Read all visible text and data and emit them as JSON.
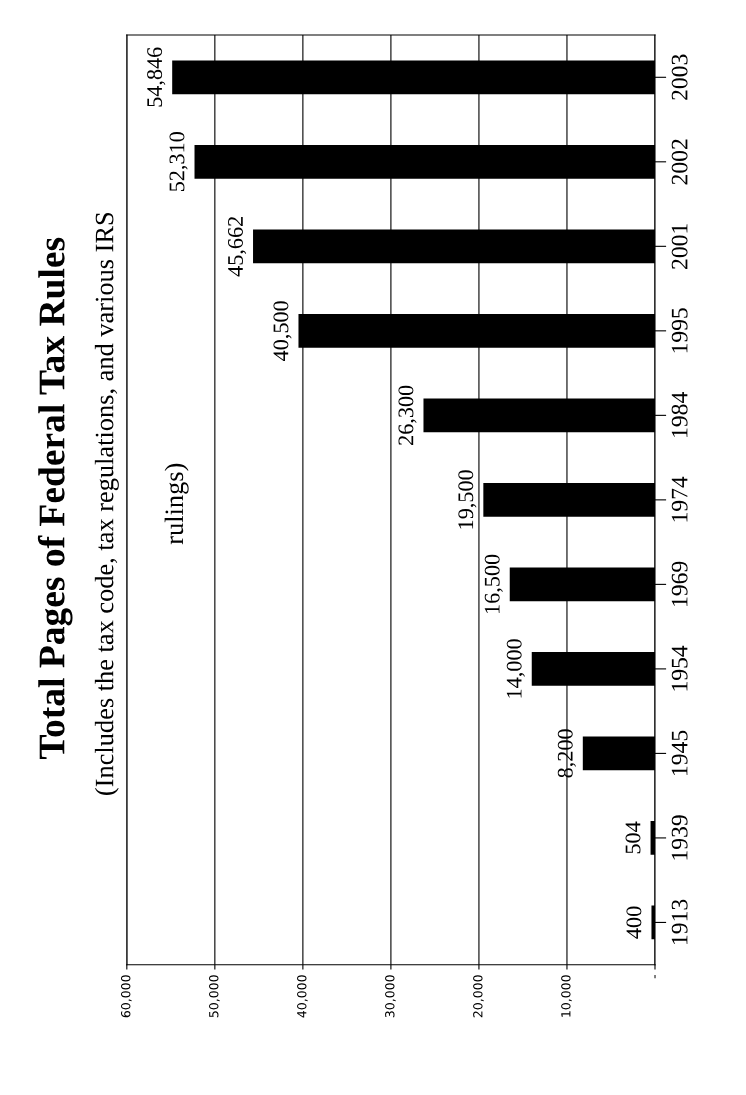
{
  "chart_data": {
    "type": "bar",
    "orientation": "horizontal",
    "title": "Total Pages of Federal Tax Rules",
    "subtitle": "(Includes the tax code, tax regulations, and various IRS\nrulings)",
    "categories": [
      "2003",
      "2002",
      "2001",
      "1995",
      "1984",
      "1974",
      "1969",
      "1954",
      "1945",
      "1939",
      "1913"
    ],
    "values": [
      54846,
      52310,
      45662,
      40500,
      26300,
      19500,
      16500,
      14000,
      8200,
      504,
      400
    ],
    "color": "#000000",
    "xlim": [
      60000,
      0
    ],
    "xticks": [
      {
        "value": 60000,
        "label": "60,000"
      },
      {
        "value": 50000,
        "label": "50,000"
      },
      {
        "value": 40000,
        "label": "40,000"
      },
      {
        "value": 30000,
        "label": "30,000"
      },
      {
        "value": 20000,
        "label": "20,000"
      },
      {
        "value": 10000,
        "label": "10,000"
      },
      {
        "value": 0,
        "label": "-"
      }
    ],
    "value_labels": [
      "54,846",
      "52,310",
      "45,662",
      "40,500",
      "26,300",
      "19,500",
      "16,500",
      "14,000",
      "8,200",
      "504",
      "400"
    ],
    "grid": "x"
  }
}
